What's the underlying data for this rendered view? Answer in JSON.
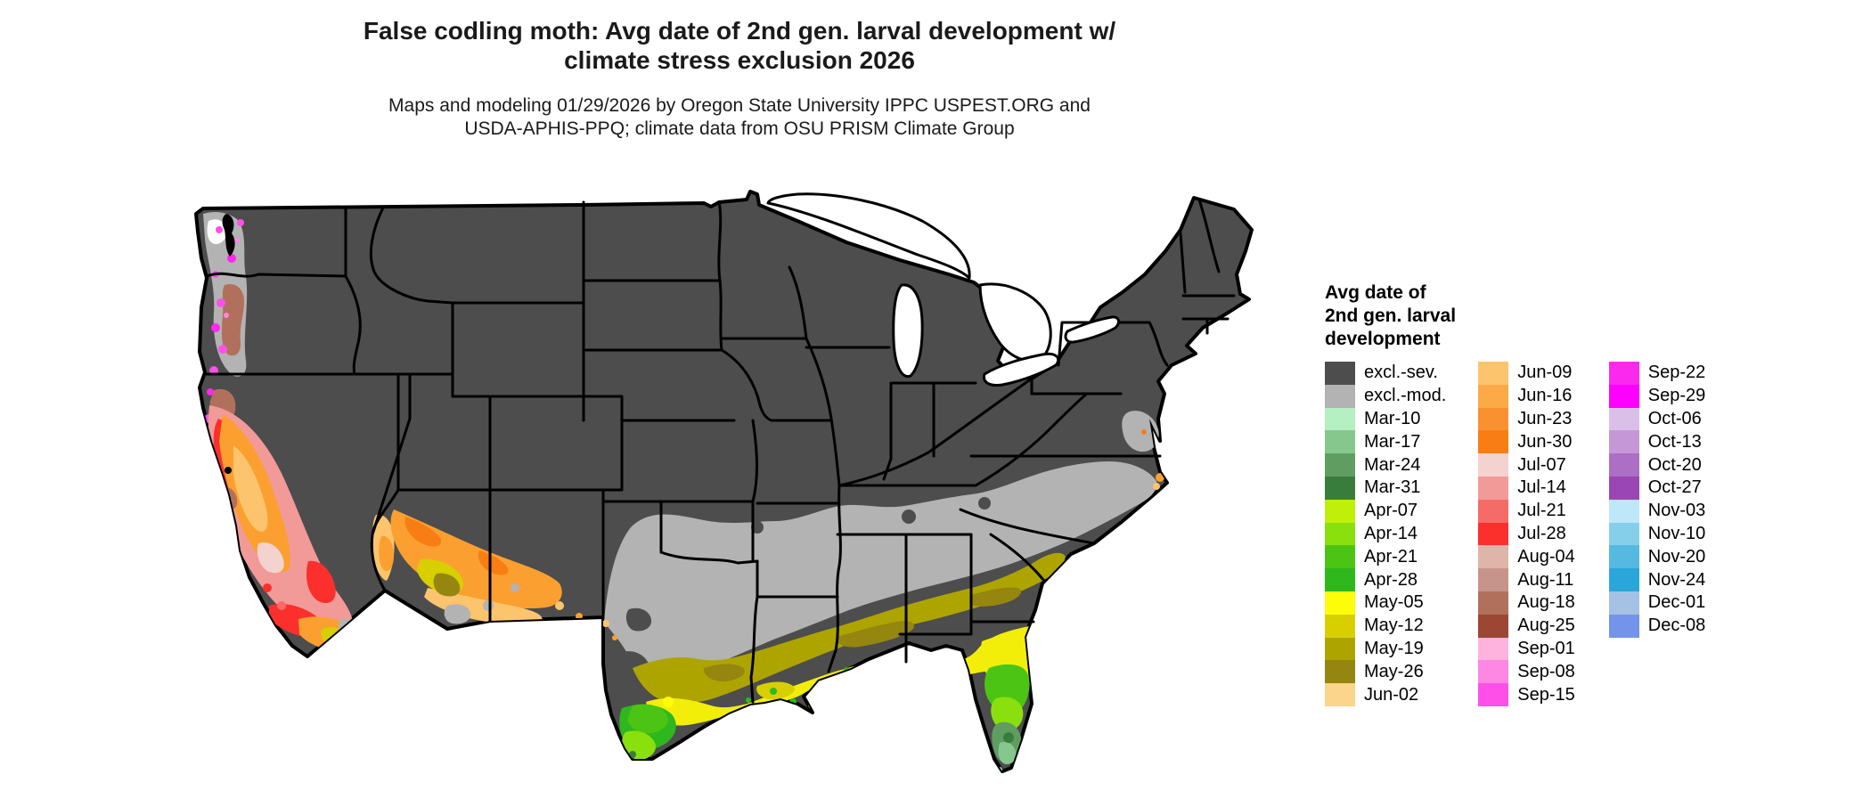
{
  "title": {
    "line1": "False codling moth: Avg date of 2nd gen. larval development w/",
    "line2": "climate stress exclusion 2026"
  },
  "subtitle": {
    "line1": "Maps and modeling 01/29/2026 by Oregon State University IPPC USPEST.ORG and",
    "line2": "USDA-APHIS-PPQ; climate data from OSU PRISM Climate Group"
  },
  "legend": {
    "title": "Avg date of\n2nd gen. larval\ndevelopment",
    "columns": [
      [
        {
          "label": "excl.-sev.",
          "color": "#4d4d4d"
        },
        {
          "label": "excl.-mod.",
          "color": "#b3b3b3"
        },
        {
          "label": "Mar-10",
          "color": "#b5f0c2"
        },
        {
          "label": "Mar-17",
          "color": "#86c78e"
        },
        {
          "label": "Mar-24",
          "color": "#5f9e60"
        },
        {
          "label": "Mar-31",
          "color": "#397d3c"
        },
        {
          "label": "Apr-07",
          "color": "#c0f00a"
        },
        {
          "label": "Apr-14",
          "color": "#8ae00d"
        },
        {
          "label": "Apr-21",
          "color": "#4cc414"
        },
        {
          "label": "Apr-28",
          "color": "#2eb81e"
        },
        {
          "label": "May-05",
          "color": "#fdfd0a"
        },
        {
          "label": "May-12",
          "color": "#d8cf00"
        },
        {
          "label": "May-19",
          "color": "#aea400"
        },
        {
          "label": "May-26",
          "color": "#94860f"
        },
        {
          "label": "Jun-02",
          "color": "#fbd58c"
        }
      ],
      [
        {
          "label": "Jun-09",
          "color": "#fcc46c"
        },
        {
          "label": "Jun-16",
          "color": "#fbaa47"
        },
        {
          "label": "Jun-23",
          "color": "#fa9130"
        },
        {
          "label": "Jun-30",
          "color": "#f87d12"
        },
        {
          "label": "Jul-07",
          "color": "#f4d2d0"
        },
        {
          "label": "Jul-14",
          "color": "#f19a98"
        },
        {
          "label": "Jul-21",
          "color": "#f56b68"
        },
        {
          "label": "Jul-28",
          "color": "#fb2f2c"
        },
        {
          "label": "Aug-04",
          "color": "#dfb4a9"
        },
        {
          "label": "Aug-11",
          "color": "#c6948a"
        },
        {
          "label": "Aug-18",
          "color": "#b1705c"
        },
        {
          "label": "Aug-25",
          "color": "#9c4733"
        },
        {
          "label": "Sep-01",
          "color": "#fdb3de"
        },
        {
          "label": "Sep-08",
          "color": "#fd87e3"
        },
        {
          "label": "Sep-15",
          "color": "#fe50e9"
        }
      ],
      [
        {
          "label": "Sep-22",
          "color": "#fb28ed"
        },
        {
          "label": "Sep-29",
          "color": "#fe00fe"
        },
        {
          "label": "Oct-06",
          "color": "#dabfe8"
        },
        {
          "label": "Oct-13",
          "color": "#c697d7"
        },
        {
          "label": "Oct-20",
          "color": "#ad6ec5"
        },
        {
          "label": "Oct-27",
          "color": "#9a46b4"
        },
        {
          "label": "Nov-03",
          "color": "#bfe7fa"
        },
        {
          "label": "Nov-10",
          "color": "#86cfeb"
        },
        {
          "label": "Nov-20",
          "color": "#56b9e2"
        },
        {
          "label": "Nov-24",
          "color": "#2ba6da"
        },
        {
          "label": "Dec-01",
          "color": "#a5c1e3"
        },
        {
          "label": "Dec-08",
          "color": "#7394ea"
        }
      ]
    ]
  },
  "map": {
    "excluded_severe_color": "#4d4d4d",
    "excluded_moderate_color": "#b3b3b3",
    "border_color": "#000000",
    "water_color": "#000000",
    "background_color": "#ffffff"
  }
}
